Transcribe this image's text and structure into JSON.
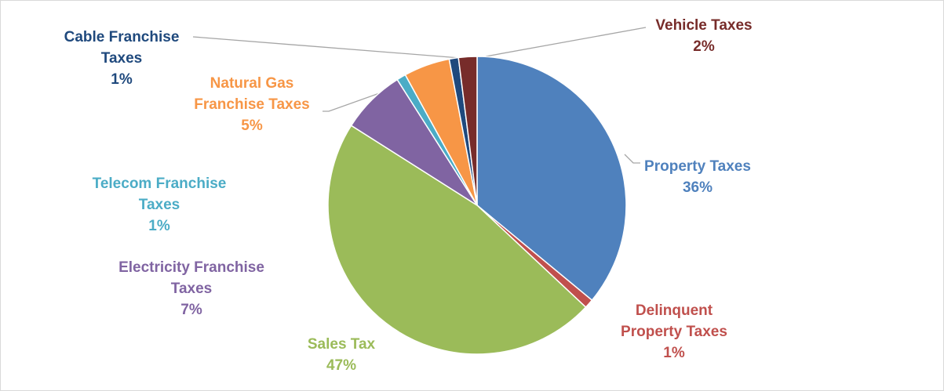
{
  "chart_data": {
    "type": "pie",
    "categories": [
      "Property Taxes",
      "Delinquent Property Taxes",
      "Sales Tax",
      "Electricity Franchise Taxes",
      "Telecom Franchise Taxes",
      "Natural Gas Franchise Taxes",
      "Cable Franchise Taxes",
      "Vehicle Taxes"
    ],
    "values": [
      36,
      1,
      47,
      7,
      1,
      5,
      1,
      2
    ],
    "value_labels": [
      "36%",
      "1%",
      "47%",
      "7%",
      "1%",
      "5%",
      "1%",
      "2%"
    ],
    "colors": [
      "#4f81bd",
      "#c0504d",
      "#9bbb59",
      "#8064a2",
      "#4bacc6",
      "#f79646",
      "#1f497d",
      "#772c2a"
    ]
  }
}
